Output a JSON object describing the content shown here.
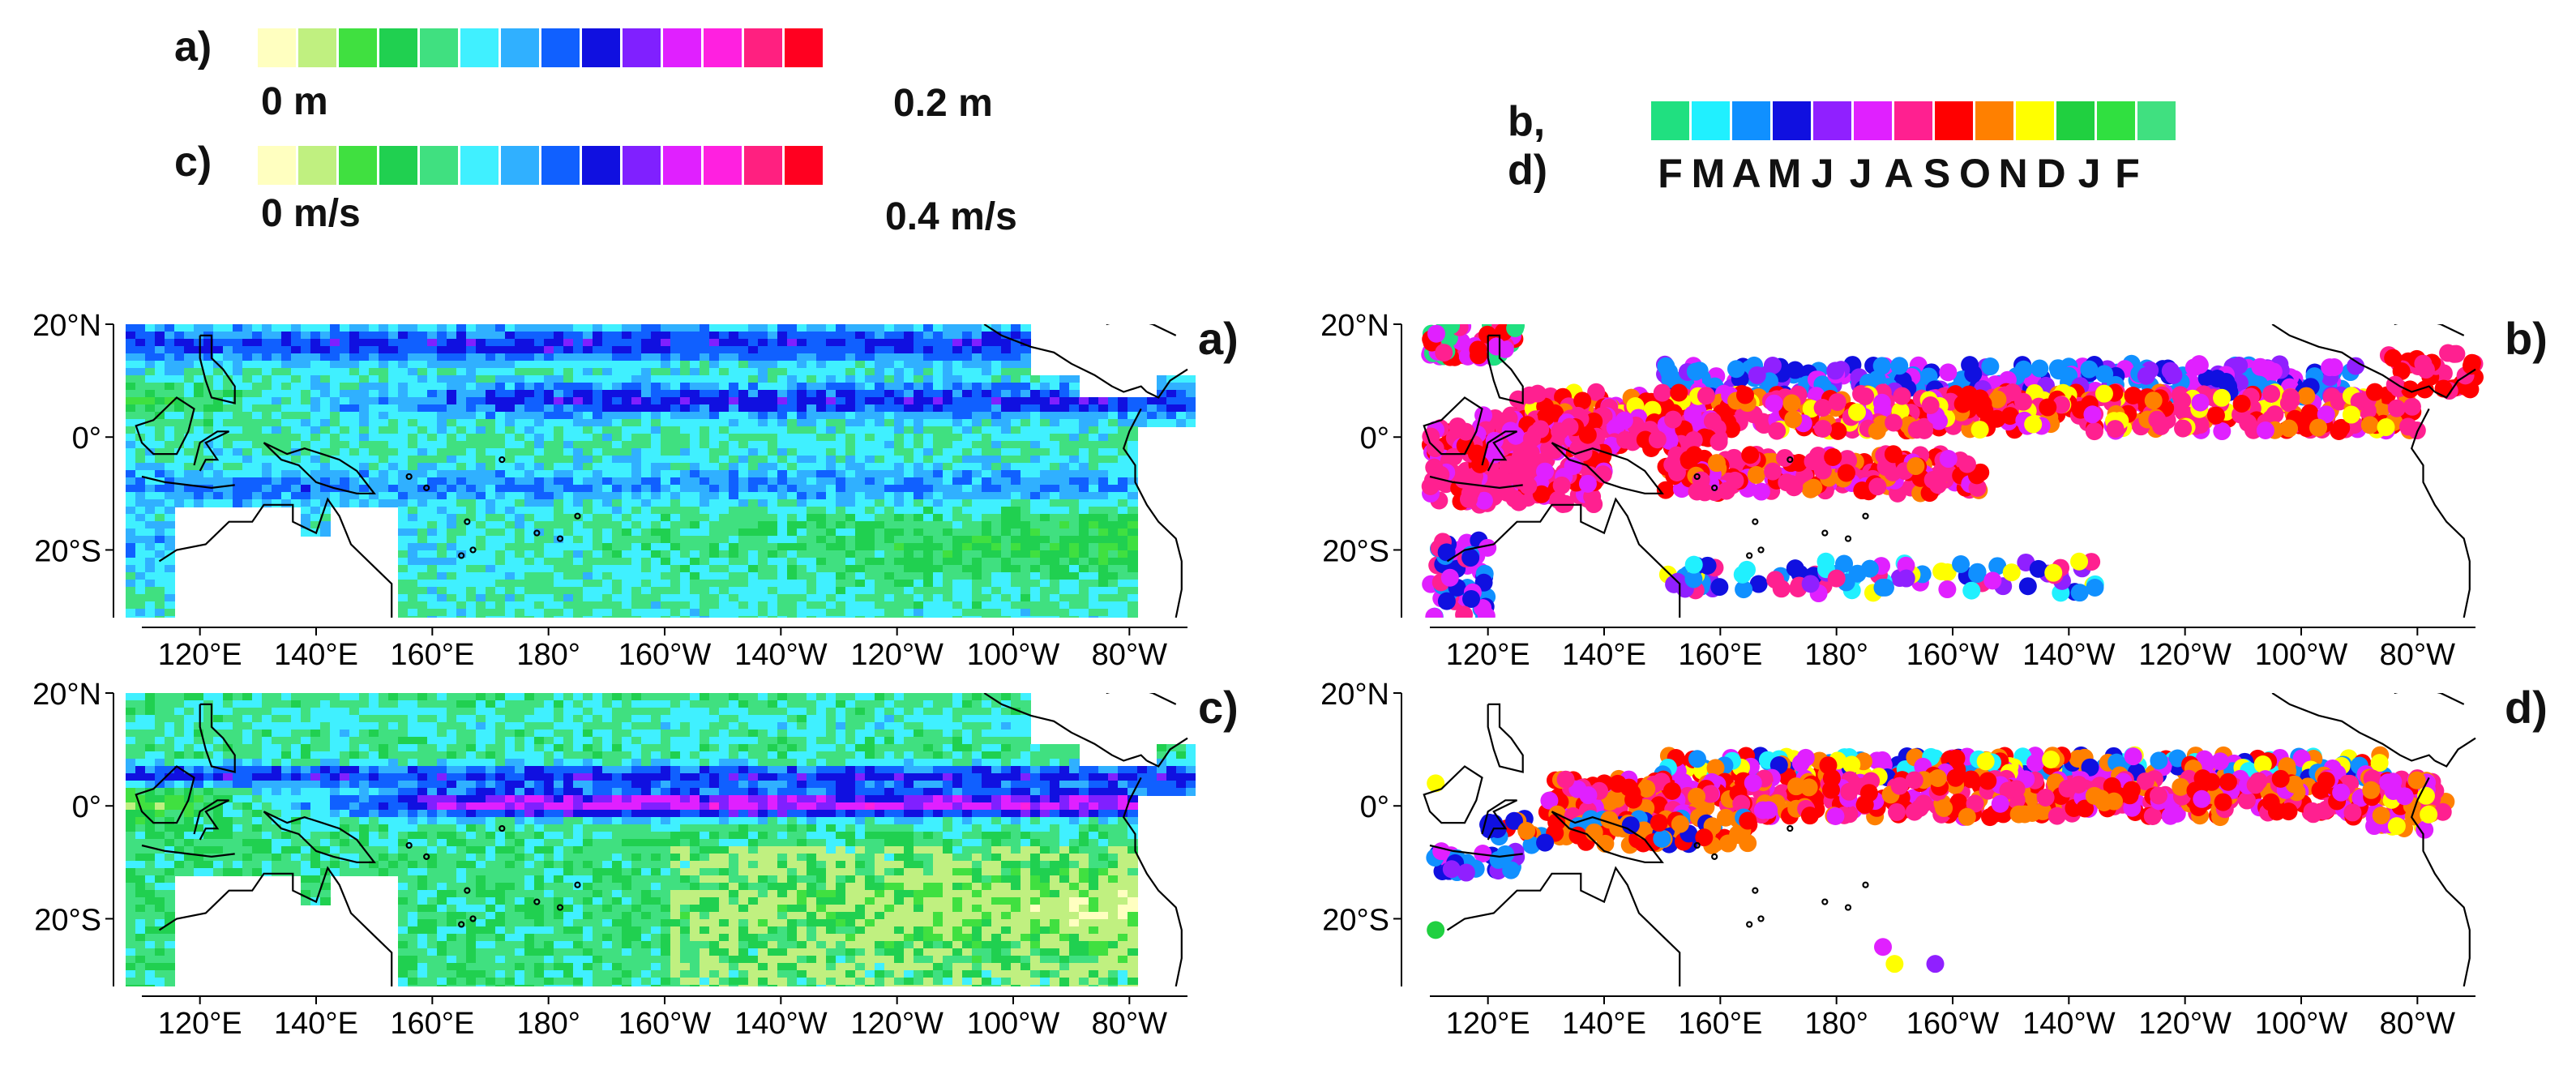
{
  "legend_a": {
    "tag": "a)",
    "min_label": "0 m",
    "max_label": "0.2 m"
  },
  "legend_c": {
    "tag": "c)",
    "min_label": "0 m/s",
    "max_label": "0.4 m/s"
  },
  "legend_bd": {
    "tag": "b, d)",
    "months": [
      "F",
      "M",
      "A",
      "M",
      "J",
      "J",
      "A",
      "S",
      "O",
      "N",
      "D",
      "J",
      "F"
    ]
  },
  "colorbar_colors": [
    "#ffffc0",
    "#c0f080",
    "#40e040",
    "#20d050",
    "#40e080",
    "#40f0ff",
    "#30b0ff",
    "#1060ff",
    "#1010e0",
    "#8020ff",
    "#e020ff",
    "#ff20e0",
    "#ff2080",
    "#ff0020"
  ],
  "month_colors": [
    "#20e080",
    "#20f0ff",
    "#1090ff",
    "#1010e0",
    "#9020ff",
    "#e020ff",
    "#ff2090",
    "#ff0000",
    "#ff8000",
    "#ffff00",
    "#20d040",
    "#30e040",
    "#40e080"
  ],
  "lat_ticks": [
    "20°N",
    "0°",
    "20°S"
  ],
  "lon_ticks": [
    "120°E",
    "140°E",
    "160°E",
    "180°",
    "160°W",
    "140°W",
    "120°W",
    "100°W",
    "80°W"
  ],
  "panels": [
    {
      "id": "a",
      "label": "a)"
    },
    {
      "id": "b",
      "label": "b)"
    },
    {
      "id": "c",
      "label": "c)"
    },
    {
      "id": "d",
      "label": "d)"
    }
  ]
}
